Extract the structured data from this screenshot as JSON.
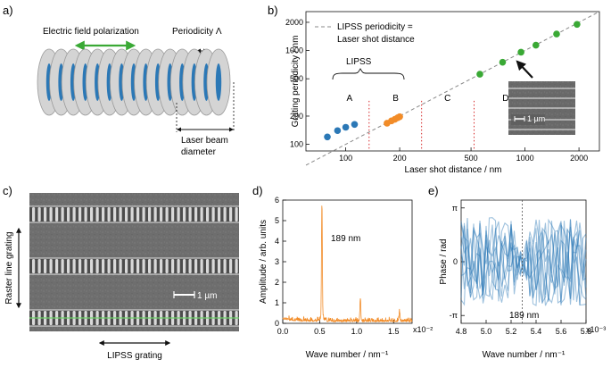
{
  "panels": {
    "a": {
      "letter": "a)",
      "efield_label": "Electric field polarization",
      "periodicity_label": "Periodicity Λ",
      "beam_label_line1": "Laser beam",
      "beam_label_line2": "diameter"
    },
    "b": {
      "letter": "b)",
      "legend_line1": "LIPSS periodicity =",
      "legend_line2": "Laser shot distance",
      "lipss_label": "LIPSS",
      "region_labels": [
        "A",
        "B",
        "C",
        "D"
      ],
      "scale_label": "1 µm"
    },
    "c": {
      "letter": "c)",
      "raster_label": "Raster line grating",
      "lipss_label": "LIPSS grating",
      "scale_label": "1 µm"
    },
    "d": {
      "letter": "d)",
      "peak_label": "189 nm",
      "multiplier": "x10⁻²"
    },
    "e": {
      "letter": "e)",
      "line_label": "189 nm",
      "multiplier": "x10⁻³"
    }
  },
  "colors": {
    "blue": "#2b78b6",
    "orange": "#f28c28",
    "green": "#3aa935",
    "red": "#d62728"
  },
  "chart_data": [
    {
      "id": "b",
      "type": "scatter",
      "xscale": "log",
      "yscale": "log",
      "xlabel": "Laser shot distance / nm",
      "ylabel": "Grating periodicity / nm",
      "xlim": [
        60,
        2600
      ],
      "ylim": [
        85,
        2600
      ],
      "xticks": [
        100,
        200,
        500,
        1000,
        2000
      ],
      "yticks": [
        100,
        200,
        500,
        1000,
        2000
      ],
      "region_boundaries": [
        135,
        265,
        520
      ],
      "reference_line": {
        "name": "LIPSS periodicity = Laser shot distance",
        "slope": 1
      },
      "series": [
        {
          "name": "A",
          "color": "#2b78b6",
          "points": [
            [
              79,
              120
            ],
            [
              90,
              140
            ],
            [
              100,
              152
            ],
            [
              112,
              163
            ]
          ]
        },
        {
          "name": "B",
          "color": "#f28c28",
          "points": [
            [
              170,
              168
            ],
            [
              180,
              178
            ],
            [
              188,
              185
            ],
            [
              195,
              192
            ],
            [
              200,
              197
            ]
          ]
        },
        {
          "name": "C-D",
          "color": "#3aa935",
          "points": [
            [
              560,
              560
            ],
            [
              750,
              750
            ],
            [
              950,
              960
            ],
            [
              1150,
              1140
            ],
            [
              1500,
              1500
            ],
            [
              1950,
              1900
            ]
          ]
        }
      ]
    },
    {
      "id": "d",
      "type": "line",
      "xlabel": "Wave number / nm⁻¹",
      "ylabel": "Amplitude / arb. units",
      "xlim": [
        0,
        1.75
      ],
      "ylim": [
        0,
        6
      ],
      "xticks": [
        0.0,
        0.5,
        1.0,
        1.5
      ],
      "yticks": [
        0,
        1,
        2,
        3,
        4,
        5,
        6
      ],
      "x_multiplier": "x10⁻²",
      "peaks": [
        {
          "x": 0.53,
          "y": 5.7,
          "label": "189 nm"
        },
        {
          "x": 1.05,
          "y": 1.1
        },
        {
          "x": 1.58,
          "y": 0.45
        }
      ]
    },
    {
      "id": "e",
      "type": "line",
      "xlabel": "Wave number / nm⁻¹",
      "ylabel": "Phase / rad",
      "xlim": [
        4.8,
        5.8
      ],
      "ylim": [
        -3.6,
        3.6
      ],
      "xticks": [
        4.8,
        5.0,
        5.2,
        5.4,
        5.6,
        5.8
      ],
      "yticks": [
        "-π",
        "0",
        "π"
      ],
      "x_multiplier": "x10⁻³",
      "marker_x": 5.29,
      "marker_label": "189 nm"
    }
  ]
}
